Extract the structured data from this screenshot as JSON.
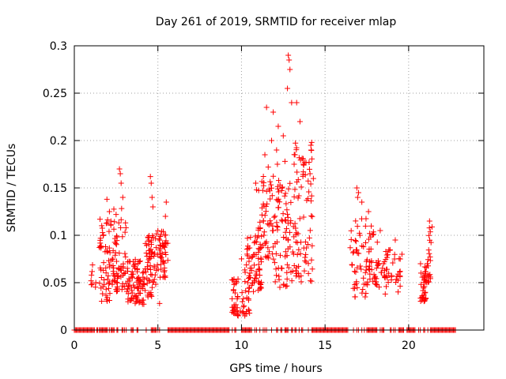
{
  "chart_data": {
    "type": "scatter",
    "title": "Day 261 of 2019, SRMTID for receiver mlap",
    "xlabel": "GPS time / hours",
    "ylabel": "SRMTID / TECUs",
    "xlim": [
      0,
      24.5
    ],
    "ylim": [
      0,
      0.3
    ],
    "grid": true,
    "marker": "+",
    "x_ticks": [
      0,
      5,
      10,
      15,
      20
    ],
    "y_ticks": [
      0,
      0.05,
      0.1,
      0.15,
      0.2,
      0.25,
      0.3
    ],
    "x_tick_labels": [
      "0",
      "5",
      "10",
      "15",
      "20"
    ],
    "y_tick_labels": [
      "0",
      "0.05",
      "0.1",
      "0.15",
      "0.2",
      "0.25",
      "0.3"
    ],
    "series": [
      {
        "name": "SRMTID",
        "color": "#ff0000",
        "clusters": [
          {
            "x_start": 1.0,
            "x_end": 1.3,
            "y_min": 0.045,
            "y_max": 0.07,
            "n": 8
          },
          {
            "x_start": 1.5,
            "x_end": 2.3,
            "y_min": 0.03,
            "y_max": 0.12,
            "n": 60
          },
          {
            "x_start": 2.3,
            "x_end": 3.2,
            "y_min": 0.04,
            "y_max": 0.13,
            "n": 70
          },
          {
            "x_start": 3.2,
            "x_end": 4.2,
            "y_min": 0.025,
            "y_max": 0.075,
            "n": 80
          },
          {
            "x_start": 4.2,
            "x_end": 4.9,
            "y_min": 0.035,
            "y_max": 0.1,
            "n": 60
          },
          {
            "x_start": 4.9,
            "x_end": 5.6,
            "y_min": 0.055,
            "y_max": 0.105,
            "n": 50
          },
          {
            "x_start": 9.4,
            "x_end": 9.8,
            "y_min": 0.015,
            "y_max": 0.055,
            "n": 35
          },
          {
            "x_start": 9.9,
            "x_end": 10.5,
            "y_min": 0.015,
            "y_max": 0.08,
            "n": 25
          },
          {
            "x_start": 10.3,
            "x_end": 11.2,
            "y_min": 0.04,
            "y_max": 0.1,
            "n": 60
          },
          {
            "x_start": 11.0,
            "x_end": 12.0,
            "y_min": 0.06,
            "y_max": 0.17,
            "n": 60
          },
          {
            "x_start": 12.0,
            "x_end": 13.0,
            "y_min": 0.045,
            "y_max": 0.16,
            "n": 70
          },
          {
            "x_start": 13.0,
            "x_end": 14.3,
            "y_min": 0.05,
            "y_max": 0.2,
            "n": 85
          },
          {
            "x_start": 16.5,
            "x_end": 17.5,
            "y_min": 0.035,
            "y_max": 0.12,
            "n": 45
          },
          {
            "x_start": 17.5,
            "x_end": 18.5,
            "y_min": 0.045,
            "y_max": 0.11,
            "n": 45
          },
          {
            "x_start": 18.5,
            "x_end": 19.5,
            "y_min": 0.04,
            "y_max": 0.085,
            "n": 40
          },
          {
            "x_start": 20.7,
            "x_end": 21.1,
            "y_min": 0.03,
            "y_max": 0.07,
            "n": 40
          },
          {
            "x_start": 21.1,
            "x_end": 21.4,
            "y_min": 0.05,
            "y_max": 0.11,
            "n": 20
          }
        ],
        "outliers": [
          {
            "x": 2.7,
            "y": 0.17
          },
          {
            "x": 2.75,
            "y": 0.165
          },
          {
            "x": 2.8,
            "y": 0.155
          },
          {
            "x": 2.9,
            "y": 0.14
          },
          {
            "x": 1.95,
            "y": 0.138
          },
          {
            "x": 2.1,
            "y": 0.125
          },
          {
            "x": 2.5,
            "y": 0.122
          },
          {
            "x": 4.55,
            "y": 0.162
          },
          {
            "x": 4.6,
            "y": 0.155
          },
          {
            "x": 4.65,
            "y": 0.14
          },
          {
            "x": 4.7,
            "y": 0.13
          },
          {
            "x": 5.5,
            "y": 0.135
          },
          {
            "x": 5.45,
            "y": 0.12
          },
          {
            "x": 5.1,
            "y": 0.028
          },
          {
            "x": 3.7,
            "y": 0.03
          },
          {
            "x": 12.8,
            "y": 0.29
          },
          {
            "x": 12.85,
            "y": 0.285
          },
          {
            "x": 12.9,
            "y": 0.275
          },
          {
            "x": 12.75,
            "y": 0.255
          },
          {
            "x": 13.0,
            "y": 0.24
          },
          {
            "x": 13.3,
            "y": 0.24
          },
          {
            "x": 11.5,
            "y": 0.235
          },
          {
            "x": 11.9,
            "y": 0.23
          },
          {
            "x": 12.2,
            "y": 0.215
          },
          {
            "x": 13.5,
            "y": 0.22
          },
          {
            "x": 12.5,
            "y": 0.205
          },
          {
            "x": 11.8,
            "y": 0.2
          },
          {
            "x": 14.15,
            "y": 0.195
          },
          {
            "x": 14.2,
            "y": 0.198
          },
          {
            "x": 13.2,
            "y": 0.185
          },
          {
            "x": 11.4,
            "y": 0.185
          },
          {
            "x": 12.6,
            "y": 0.178
          },
          {
            "x": 13.15,
            "y": 0.175
          },
          {
            "x": 11.6,
            "y": 0.172
          },
          {
            "x": 12.1,
            "y": 0.19
          },
          {
            "x": 12.15,
            "y": 0.175
          },
          {
            "x": 10.85,
            "y": 0.155
          },
          {
            "x": 10.9,
            "y": 0.148
          },
          {
            "x": 14.1,
            "y": 0.165
          },
          {
            "x": 13.7,
            "y": 0.175
          },
          {
            "x": 16.9,
            "y": 0.15
          },
          {
            "x": 17.0,
            "y": 0.145
          },
          {
            "x": 16.95,
            "y": 0.14
          },
          {
            "x": 17.2,
            "y": 0.135
          },
          {
            "x": 17.6,
            "y": 0.125
          },
          {
            "x": 18.3,
            "y": 0.105
          },
          {
            "x": 19.2,
            "y": 0.095
          },
          {
            "x": 19.6,
            "y": 0.08
          },
          {
            "x": 21.25,
            "y": 0.115
          },
          {
            "x": 9.8,
            "y": 0.015
          },
          {
            "x": 10.2,
            "y": 0.015
          },
          {
            "x": 16.8,
            "y": 0.035
          },
          {
            "x": 17.4,
            "y": 0.035
          },
          {
            "x": 18.6,
            "y": 0.038
          }
        ],
        "zero_segments": [
          [
            0.0,
            1.2
          ],
          [
            1.5,
            2.0
          ],
          [
            2.2,
            2.4
          ],
          [
            2.85,
            2.95
          ],
          [
            3.4,
            3.55
          ],
          [
            4.6,
            4.9
          ],
          [
            5.6,
            9.3
          ],
          [
            9.6,
            9.7
          ],
          [
            10.0,
            10.6
          ],
          [
            11.1,
            11.15
          ],
          [
            11.5,
            11.55
          ],
          [
            11.8,
            11.85
          ],
          [
            12.1,
            12.2
          ],
          [
            12.35,
            12.45
          ],
          [
            12.6,
            12.8
          ],
          [
            13.2,
            13.3
          ],
          [
            13.6,
            13.7
          ],
          [
            14.2,
            16.4
          ],
          [
            17.2,
            17.25
          ],
          [
            17.5,
            18.1
          ],
          [
            18.4,
            18.55
          ],
          [
            18.9,
            19.0
          ],
          [
            19.2,
            19.25
          ],
          [
            19.4,
            19.7
          ],
          [
            19.9,
            20.4
          ],
          [
            20.9,
            21.0
          ],
          [
            21.3,
            22.8
          ]
        ],
        "zero_points": [
          1.35,
          1.4,
          2.1,
          2.55,
          2.6,
          3.0,
          3.1,
          3.75,
          3.8,
          4.3,
          5.0,
          5.1,
          9.45,
          10.8,
          10.9,
          11.3,
          11.4,
          13.0,
          13.05,
          13.45,
          14.0,
          16.7,
          16.9,
          17.0,
          17.35,
          18.3,
          19.1,
          20.6,
          20.7,
          21.15
        ]
      }
    ]
  }
}
